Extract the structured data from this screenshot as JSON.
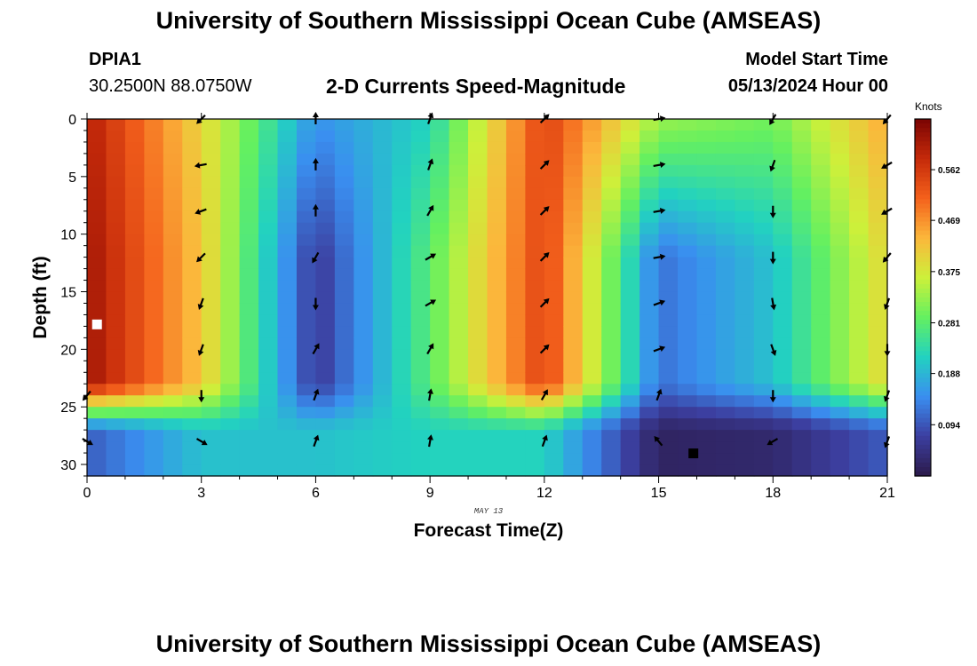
{
  "header": {
    "title": "University of Southern Mississippi Ocean Cube (AMSEAS)",
    "station": "DPIA1",
    "coords": "30.2500N  88.0750W",
    "subtitle": "2-D Currents Speed-Magnitude",
    "model_start_label": "Model Start Time",
    "model_start_date": "05/13/2024 Hour 00"
  },
  "footer": {
    "title": "University of Southern Mississippi Ocean Cube (AMSEAS)"
  },
  "chart_data": {
    "type": "heatmap",
    "xlabel": "Forecast Time(Z)",
    "ylabel": "Depth (ft)",
    "x_annotation": "MAY 13",
    "xlim": [
      0,
      21
    ],
    "ylim": [
      0,
      31
    ],
    "xticks": [
      0,
      3,
      6,
      9,
      12,
      15,
      18,
      21
    ],
    "yticks": [
      0,
      5,
      10,
      15,
      20,
      25,
      30
    ],
    "colorbar": {
      "label": "Knots",
      "range": [
        0,
        0.655
      ],
      "ticks": [
        0.094,
        0.188,
        0.281,
        0.375,
        0.469,
        0.562
      ],
      "colors": [
        "#2b1a4a",
        "#3c3fa0",
        "#3a8ef0",
        "#22d2c0",
        "#64f060",
        "#cdf03a",
        "#fbb73b",
        "#f4611c",
        "#c52a0a",
        "#7a0403"
      ]
    },
    "speed_knots_profile": [
      {
        "hour": 0,
        "surface": 0.6,
        "mid": 0.62,
        "bottom": 0.1
      },
      {
        "hour": 3,
        "surface": 0.4,
        "mid": 0.42,
        "bottom": 0.2
      },
      {
        "hour": 6,
        "surface": 0.15,
        "mid": 0.06,
        "bottom": 0.2
      },
      {
        "hour": 9,
        "surface": 0.22,
        "mid": 0.28,
        "bottom": 0.22
      },
      {
        "hour": 12,
        "surface": 0.55,
        "mid": 0.55,
        "bottom": 0.22
      },
      {
        "hour": 15,
        "surface": 0.33,
        "mid": 0.12,
        "bottom": 0.02
      },
      {
        "hour": 18,
        "surface": 0.3,
        "mid": 0.2,
        "bottom": 0.03
      },
      {
        "hour": 21,
        "surface": 0.45,
        "mid": 0.4,
        "bottom": 0.1
      }
    ],
    "vectors": {
      "hours": [
        0,
        3,
        6,
        9,
        12,
        15,
        18,
        21
      ],
      "depths": [
        0,
        4,
        8,
        12,
        16,
        20,
        24,
        28
      ],
      "direction_deg": [
        [
          null,
          225,
          0,
          20,
          45,
          80,
          210,
          220
        ],
        [
          null,
          260,
          0,
          20,
          45,
          80,
          200,
          240
        ],
        [
          null,
          250,
          0,
          30,
          45,
          80,
          180,
          240
        ],
        [
          null,
          225,
          210,
          60,
          45,
          80,
          180,
          220
        ],
        [
          null,
          200,
          180,
          60,
          45,
          70,
          170,
          200
        ],
        [
          null,
          200,
          30,
          30,
          45,
          70,
          160,
          180
        ],
        [
          220,
          180,
          20,
          10,
          30,
          20,
          180,
          200
        ],
        [
          120,
          120,
          20,
          10,
          20,
          320,
          240,
          200
        ]
      ]
    },
    "markers": [
      {
        "hour": 0.25,
        "depth": 17.8,
        "type": "missing",
        "color": "#ffffff"
      },
      {
        "hour": 15.9,
        "depth": 29.0,
        "type": "missing",
        "color": "#000000"
      }
    ]
  }
}
